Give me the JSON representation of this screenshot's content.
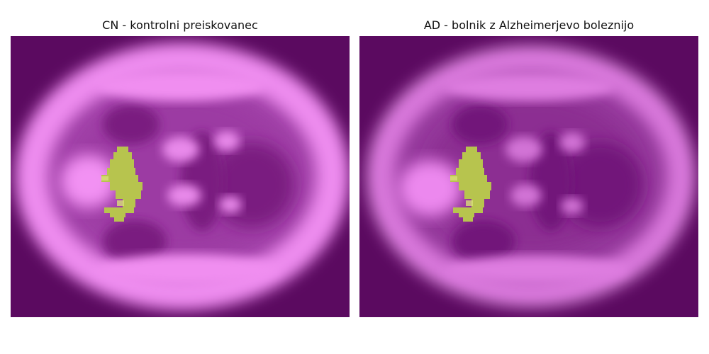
{
  "panels": [
    {
      "title": "CN - kontrolni preiskovanec"
    },
    {
      "title": "AD - bolnik z Alzheimerjevo boleznijo"
    }
  ],
  "colors": {
    "background": "#5b0a60",
    "cortex_bright": "#f08ef0",
    "cortex_mid": "#c563c8",
    "deep": "#7b1c80",
    "overlay": "#b7c44e",
    "overlay_light": "#d9e07a"
  },
  "overlay_label": "hippocampus-overlay"
}
